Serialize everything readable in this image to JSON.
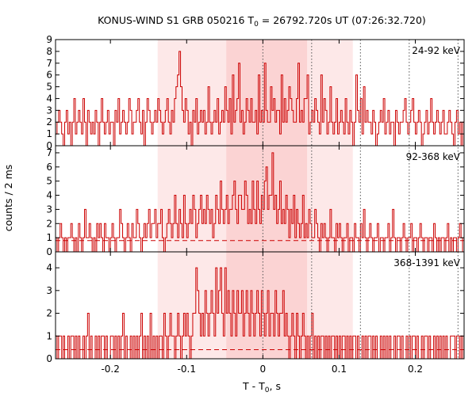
{
  "chart_data": {
    "type": "line",
    "title": "KONUS-WIND S1 GRB 050216 T",
    "title_sub": "0",
    "title_rest": " = 26792.720s UT (07:26:32.720)",
    "xlabel": "T - T",
    "xlabel_sub": "0",
    "xlabel_rest": ", s",
    "ylabel": "counts / 2 ms",
    "xlim": [
      -0.272,
      0.264
    ],
    "xticks": [
      -0.2,
      -0.1,
      0,
      0.1,
      0.2
    ],
    "xtick_labels": [
      "-0.2",
      "-0.1",
      "0",
      "0.1",
      "0.2"
    ],
    "bin_width": 0.002,
    "line_color": "#cc0000",
    "grid": false,
    "shaded_regions": [
      {
        "x0": -0.138,
        "x1": 0.118,
        "color": "#fde8e8"
      },
      {
        "x0": -0.048,
        "x1": 0.058,
        "color": "#fbd3d3"
      }
    ],
    "vertical_lines": [
      0,
      0.064,
      0.128,
      0.192,
      0.256
    ],
    "panels": [
      {
        "label": "24-92 keV",
        "ylim": [
          0,
          9
        ],
        "yticks": [
          0,
          1,
          2,
          3,
          4,
          5,
          6,
          7,
          8,
          9
        ],
        "ytick_labels": [
          "0",
          "1",
          "2",
          "3",
          "4",
          "5",
          "6",
          "7",
          "8",
          "9"
        ],
        "background": null,
        "counts": [
          1,
          2,
          3,
          2,
          1,
          0,
          2,
          3,
          1,
          2,
          0,
          2,
          4,
          1,
          2,
          3,
          2,
          1,
          4,
          2,
          0,
          3,
          2,
          1,
          2,
          1,
          3,
          2,
          0,
          2,
          4,
          2,
          1,
          2,
          3,
          1,
          2,
          2,
          0,
          3,
          2,
          4,
          1,
          2,
          3,
          2,
          1,
          2,
          4,
          3,
          1,
          2,
          2,
          3,
          4,
          2,
          1,
          3,
          0,
          2,
          4,
          3,
          2,
          1,
          2,
          3,
          2,
          4,
          3,
          2,
          1,
          2,
          3,
          4,
          2,
          1,
          3,
          2,
          4,
          5,
          6,
          8,
          5,
          3,
          2,
          4,
          3,
          1,
          2,
          0,
          3,
          2,
          4,
          1,
          2,
          3,
          2,
          3,
          1,
          2,
          5,
          2,
          1,
          2,
          3,
          2,
          4,
          1,
          2,
          3,
          2,
          5,
          3,
          2,
          4,
          1,
          6,
          2,
          3,
          4,
          7,
          2,
          3,
          1,
          2,
          4,
          3,
          2,
          4,
          2,
          2,
          3,
          1,
          6,
          2,
          3,
          2,
          7,
          3,
          2,
          2,
          5,
          3,
          4,
          2,
          3,
          3,
          1,
          6,
          2,
          4,
          2,
          3,
          5,
          4,
          3,
          2,
          2,
          4,
          7,
          2,
          3,
          2,
          4,
          4,
          6,
          1,
          2,
          3,
          2,
          4,
          3,
          2,
          1,
          6,
          2,
          4,
          3,
          1,
          2,
          5,
          2,
          1,
          2,
          4,
          1,
          2,
          3,
          2,
          1,
          4,
          2,
          1,
          3,
          2,
          0,
          2,
          6,
          3,
          2,
          4,
          1,
          5,
          2,
          3,
          2,
          2,
          1,
          3,
          2,
          0,
          1,
          2,
          3,
          2,
          4,
          1,
          2,
          3,
          1,
          2,
          2,
          0,
          3,
          2,
          1,
          2,
          2,
          3,
          4,
          2,
          1,
          2,
          3,
          4,
          2,
          1,
          2,
          3,
          2,
          0,
          1,
          2,
          3,
          1,
          2,
          4,
          2,
          1,
          2,
          3,
          2,
          1,
          2,
          3,
          1
        ]
      },
      {
        "label": "92-368 keV",
        "ylim": [
          0,
          7.5
        ],
        "yticks": [
          0,
          1,
          2,
          3,
          4,
          5,
          6,
          7
        ],
        "ytick_labels": [
          "0",
          "1",
          "2",
          "3",
          "4",
          "5",
          "6",
          "7"
        ],
        "background": 0.8,
        "counts": [
          1,
          0,
          1,
          2,
          1,
          0,
          1,
          0,
          1,
          1,
          2,
          1,
          0,
          1,
          0,
          2,
          1,
          0,
          1,
          3,
          1,
          1,
          2,
          1,
          0,
          1,
          0,
          2,
          1,
          2,
          1,
          0,
          2,
          1,
          1,
          0,
          1,
          2,
          1,
          0,
          1,
          1,
          3,
          2,
          1,
          0,
          1,
          2,
          1,
          0,
          2,
          1,
          1,
          3,
          2,
          1,
          0,
          1,
          2,
          1,
          2,
          3,
          1,
          2,
          2,
          3,
          1,
          2,
          2,
          3,
          1,
          0,
          1,
          2,
          3,
          2,
          1,
          2,
          4,
          2,
          1,
          3,
          2,
          1,
          4,
          2,
          1,
          2,
          3,
          2,
          4,
          3,
          1,
          2,
          3,
          4,
          2,
          3,
          2,
          4,
          3,
          2,
          3,
          1,
          2,
          4,
          3,
          2,
          5,
          3,
          2,
          3,
          4,
          2,
          3,
          3,
          4,
          5,
          3,
          2,
          4,
          4,
          3,
          3,
          5,
          4,
          2,
          3,
          2,
          5,
          3,
          2,
          5,
          3,
          2,
          4,
          3,
          5,
          6,
          3,
          4,
          4,
          7,
          3,
          4,
          2,
          3,
          5,
          2,
          3,
          2,
          4,
          3,
          1,
          3,
          2,
          4,
          1,
          3,
          2,
          1,
          2,
          4,
          1,
          2,
          1,
          3,
          2,
          1,
          1,
          3,
          2,
          1,
          0,
          2,
          1,
          2,
          1,
          0,
          1,
          3,
          1,
          1,
          0,
          2,
          1,
          2,
          1,
          0,
          1,
          1,
          2,
          0,
          1,
          1,
          0,
          2,
          1,
          1,
          0,
          2,
          1,
          3,
          1,
          0,
          1,
          2,
          1,
          0,
          1,
          1,
          2,
          0,
          1,
          1,
          0,
          1,
          1,
          2,
          0,
          1,
          3,
          1,
          0,
          1,
          1,
          0,
          1,
          2,
          1,
          0,
          1,
          1,
          2,
          0,
          1,
          1,
          0,
          1,
          2,
          1,
          0,
          1,
          1,
          0,
          1,
          1,
          0,
          2,
          1,
          0,
          1,
          0,
          1,
          1,
          0,
          1,
          2,
          0,
          1,
          0,
          1
        ]
      },
      {
        "label": "368-1391 keV",
        "ylim": [
          0,
          4.7
        ],
        "yticks": [
          0,
          1,
          2,
          3,
          4
        ],
        "ytick_labels": [
          "0",
          "1",
          "2",
          "3",
          "4"
        ],
        "background": 0.4,
        "counts": [
          1,
          0,
          1,
          1,
          0,
          1,
          0,
          0,
          1,
          0,
          1,
          1,
          0,
          1,
          0,
          1,
          0,
          0,
          1,
          0,
          1,
          2,
          0,
          1,
          0,
          0,
          1,
          0,
          1,
          0,
          1,
          1,
          0,
          1,
          0,
          0,
          1,
          1,
          0,
          1,
          0,
          1,
          0,
          1,
          2,
          0,
          1,
          0,
          0,
          1,
          0,
          1,
          0,
          1,
          0,
          1,
          2,
          0,
          1,
          0,
          1,
          0,
          2,
          0,
          1,
          0,
          1,
          0,
          1,
          1,
          0,
          2,
          1,
          0,
          1,
          2,
          1,
          1,
          0,
          1,
          2,
          1,
          0,
          1,
          2,
          1,
          2,
          1,
          0,
          1,
          2,
          2,
          4,
          3,
          2,
          1,
          2,
          1,
          3,
          2,
          1,
          2,
          3,
          2,
          1,
          4,
          2,
          3,
          4,
          2,
          1,
          4,
          2,
          3,
          2,
          1,
          3,
          2,
          1,
          3,
          2,
          2,
          3,
          1,
          2,
          3,
          2,
          1,
          3,
          2,
          1,
          2,
          3,
          2,
          1,
          3,
          2,
          1,
          2,
          3,
          1,
          2,
          2,
          1,
          3,
          2,
          1,
          2,
          2,
          3,
          1,
          2,
          1,
          0,
          1,
          2,
          1,
          0,
          2,
          1,
          0,
          1,
          2,
          1,
          0,
          1,
          0,
          1,
          2,
          0,
          1,
          0,
          1,
          0,
          1,
          1,
          0,
          1,
          0,
          1,
          0,
          1,
          1,
          0,
          1,
          0,
          1,
          0,
          1,
          1,
          0,
          1,
          0,
          1,
          0,
          1,
          1,
          0,
          1,
          0,
          0,
          1,
          0,
          1,
          0,
          1,
          1,
          0,
          1,
          0,
          1,
          0,
          0,
          1,
          0,
          1,
          0,
          1,
          0,
          1,
          0,
          0,
          1,
          0,
          1,
          1,
          0,
          1,
          0,
          0,
          1,
          0,
          1,
          0,
          1,
          1,
          0,
          1,
          0,
          0,
          1,
          0,
          1,
          1,
          0,
          1,
          0,
          0,
          1,
          0,
          1,
          0,
          1,
          0,
          1,
          0,
          1,
          0,
          0,
          1,
          1
        ]
      }
    ]
  }
}
